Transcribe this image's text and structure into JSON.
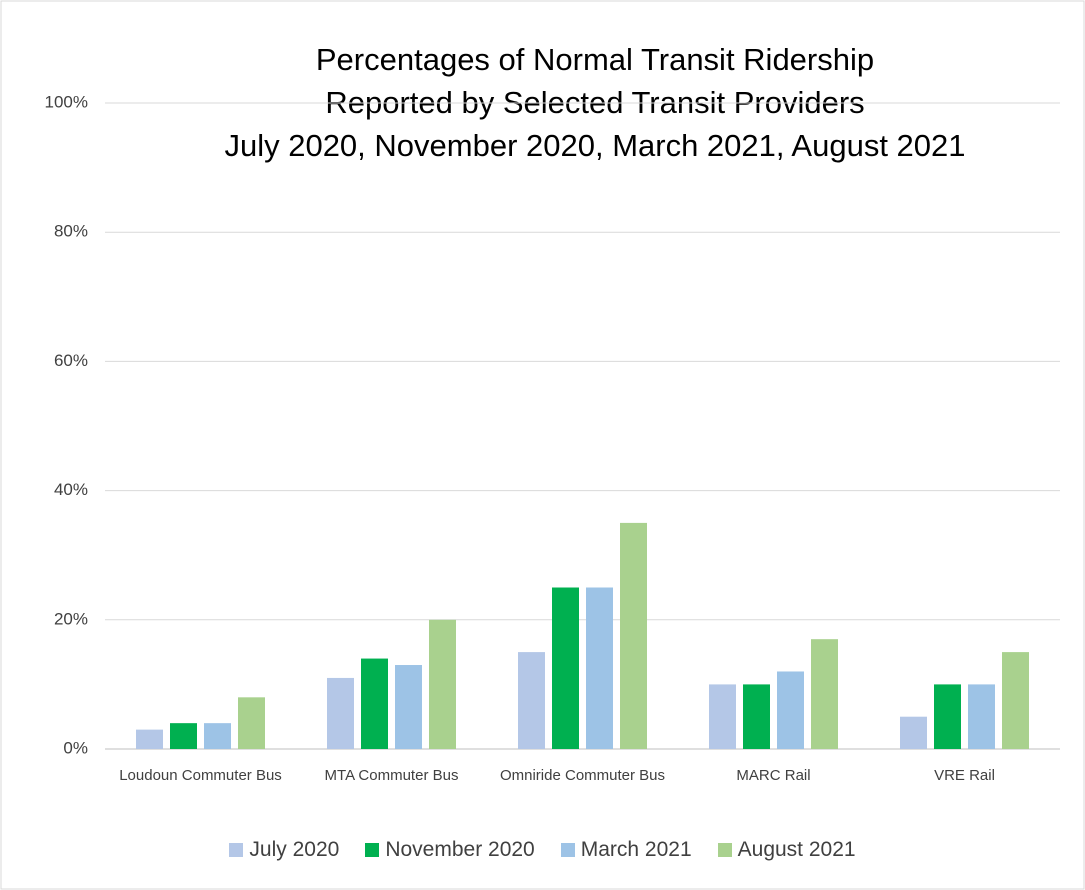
{
  "chart_data": {
    "type": "bar",
    "title": [
      "Percentages of Normal Transit Ridership",
      "Reported by Selected Transit Providers",
      "July 2020, November 2020, March 2021, August 2021"
    ],
    "categories": [
      "Loudoun Commuter Bus",
      "MTA Commuter Bus",
      "Omniride Commuter Bus",
      "MARC Rail",
      "VRE Rail"
    ],
    "series": [
      {
        "name": "July 2020",
        "color": "#b4c7e7",
        "values": [
          3,
          11,
          15,
          10,
          5
        ]
      },
      {
        "name": "November 2020",
        "color": "#00b050",
        "values": [
          4,
          14,
          25,
          10,
          10
        ]
      },
      {
        "name": "March 2021",
        "color": "#9dc3e6",
        "values": [
          4,
          13,
          25,
          12,
          10
        ]
      },
      {
        "name": "August 2021",
        "color": "#a9d18e",
        "values": [
          8,
          20,
          35,
          17,
          15
        ]
      }
    ],
    "ylim": [
      0,
      100
    ],
    "yticks": [
      {
        "value": 0,
        "label": "0%"
      },
      {
        "value": 20,
        "label": "20%"
      },
      {
        "value": 40,
        "label": "40%"
      },
      {
        "value": 60,
        "label": "60%"
      },
      {
        "value": 80,
        "label": "80%"
      },
      {
        "value": 100,
        "label": "100%"
      }
    ],
    "grid": true,
    "legend": "bottom"
  }
}
